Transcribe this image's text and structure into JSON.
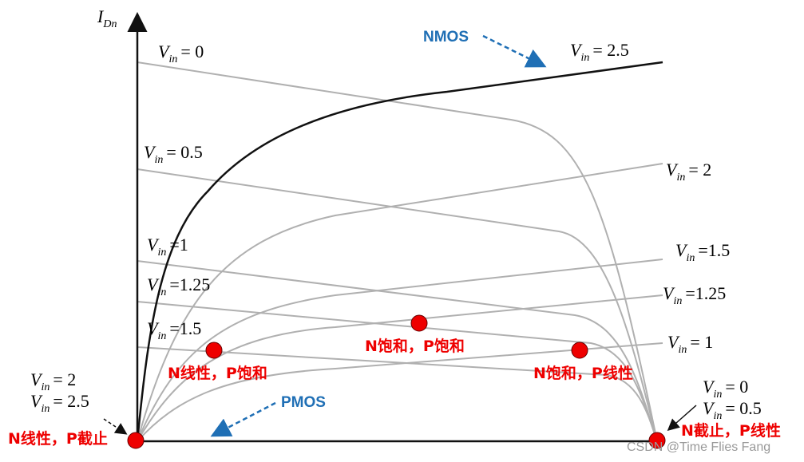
{
  "axis_label": {
    "symbol": "I",
    "sub": "Dn"
  },
  "annotations": {
    "nmos": "NMOS",
    "pmos": "PMOS"
  },
  "vin_labels": [
    {
      "symbol": "V",
      "sub": "in",
      "rhs": "= 0"
    },
    {
      "symbol": "V",
      "sub": "in",
      "rhs": "= 0.5"
    },
    {
      "symbol": "V",
      "sub": "in",
      "rhs": "=1"
    },
    {
      "symbol": "V",
      "sub": "in",
      "rhs": "=1.25"
    },
    {
      "symbol": "V",
      "sub": "in",
      "rhs": "=1.5"
    },
    {
      "symbol": "V",
      "sub": "in",
      "rhs": "= 2.5"
    },
    {
      "symbol": "V",
      "sub": "in",
      "rhs": "= 2"
    },
    {
      "symbol": "V",
      "sub": "in",
      "rhs": "=1.5"
    },
    {
      "symbol": "V",
      "sub": "in",
      "rhs": "=1.25"
    },
    {
      "symbol": "V",
      "sub": "in",
      "rhs": "= 1"
    },
    {
      "symbol": "V",
      "sub": "in",
      "rhs": "= 2"
    },
    {
      "symbol": "V",
      "sub": "in",
      "rhs": "= 2.5"
    },
    {
      "symbol": "V",
      "sub": "in",
      "rhs": "= 0"
    },
    {
      "symbol": "V",
      "sub": "in",
      "rhs": "= 0.5"
    }
  ],
  "regions": [
    "N线性，P饱和",
    "N饱和，P饱和",
    "N饱和，P线性",
    "N线性，P截止",
    "N截止，P线性"
  ],
  "watermark": "CSDN @Time Flies Fang"
}
